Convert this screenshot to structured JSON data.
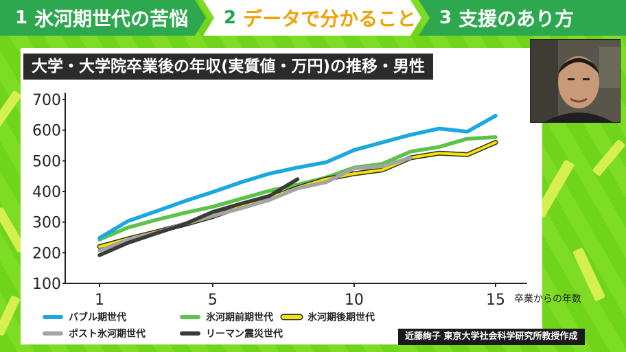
{
  "nav": {
    "items": [
      {
        "num": "1",
        "label": "氷河期世代の苦悩"
      },
      {
        "num": "2",
        "label": "データで分かること"
      },
      {
        "num": "3",
        "label": "支援のあり方"
      }
    ]
  },
  "source": "近藤絢子 東京大学社会科学研究所教授作成",
  "colors": {
    "background": "#7edc25",
    "bubble": "#1ba7e0",
    "pre_ice": "#5cc24a",
    "post_ice": "#f2e600",
    "post_ice_outline": "#2b2b2b",
    "post_hyogaki": "#a4a4a4",
    "lehman": "#3a3a3a"
  },
  "chart_data": {
    "type": "line",
    "title": "大学・大学院卒業後の年収(実質値・万円)の推移・男性",
    "xlabel": "卒業からの年数",
    "ylabel": "",
    "xlim": [
      1,
      15
    ],
    "ylim": [
      100,
      700
    ],
    "x_ticks": [
      1,
      5,
      10,
      15
    ],
    "y_ticks": [
      100,
      200,
      300,
      400,
      500,
      600,
      700
    ],
    "grid": false,
    "legend_position": "bottom",
    "x": [
      1,
      2,
      3,
      4,
      5,
      6,
      7,
      8,
      9,
      10,
      11,
      12,
      13,
      14,
      15
    ],
    "series": [
      {
        "name": "バブル期世代",
        "color": "#1ba7e0",
        "values": [
          248,
          303,
          335,
          368,
          398,
          430,
          458,
          478,
          495,
          535,
          560,
          585,
          605,
          595,
          647
        ]
      },
      {
        "name": "氷河期前期世代",
        "color": "#5cc24a",
        "values": [
          243,
          282,
          307,
          330,
          350,
          376,
          402,
          422,
          445,
          478,
          490,
          530,
          545,
          572,
          577
        ]
      },
      {
        "name": "氷河期後期世代",
        "color": "#f2e600",
        "values": [
          220,
          245,
          268,
          292,
          318,
          350,
          378,
          412,
          440,
          458,
          470,
          510,
          525,
          520,
          560
        ]
      },
      {
        "name": "ポスト氷河期世代",
        "color": "#a4a4a4",
        "values": [
          207,
          242,
          265,
          295,
          320,
          345,
          372,
          410,
          430,
          475,
          482,
          510,
          null,
          null,
          null
        ]
      },
      {
        "name": "リーマン震災世代",
        "color": "#3a3a3a",
        "values": [
          192,
          232,
          263,
          293,
          333,
          360,
          385,
          440,
          null,
          null,
          null,
          null,
          null,
          null,
          null
        ]
      }
    ]
  }
}
